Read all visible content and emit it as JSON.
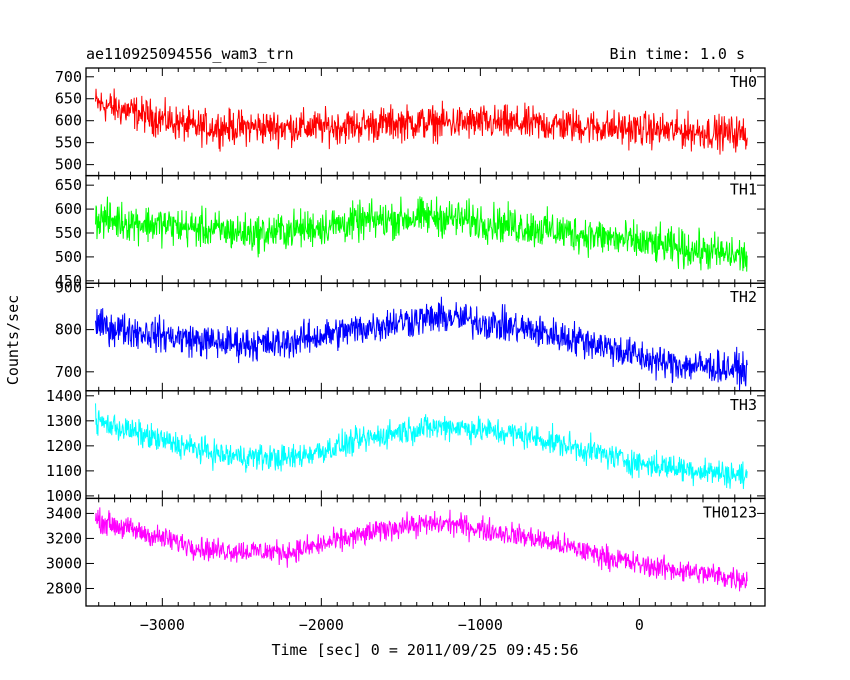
{
  "header": {
    "title": "ae110925094556_wam3_trn",
    "bin_time": "Bin time: 1.0 s"
  },
  "ylabel": "Counts/sec",
  "xlabel": "Time [sec] 0 = 2011/09/25 09:45:56",
  "chart_data": {
    "type": "line",
    "xlim": [
      -3480,
      790
    ],
    "x_ticks": [
      -3000,
      -2000,
      -1000,
      0
    ],
    "x_tick_labels": [
      "−3000",
      "−2000",
      "−1000",
      "0"
    ],
    "x_range_data": [
      -3420,
      680
    ],
    "panels": [
      {
        "name": "TH0",
        "color": "#ff0000",
        "ylim": [
          475,
          720
        ],
        "ticks": [
          500,
          550,
          600,
          650,
          700
        ],
        "trend": [
          [
            -3420,
            640
          ],
          [
            -3250,
            625
          ],
          [
            -2800,
            585
          ],
          [
            -2000,
            585
          ],
          [
            -1500,
            595
          ],
          [
            -1000,
            595
          ],
          [
            -500,
            590
          ],
          [
            0,
            580
          ],
          [
            680,
            570
          ]
        ],
        "noise": 30
      },
      {
        "name": "TH1",
        "color": "#00ff00",
        "ylim": [
          445,
          670
        ],
        "ticks": [
          450,
          500,
          550,
          600,
          650
        ],
        "trend": [
          [
            -3420,
            580
          ],
          [
            -2800,
            560
          ],
          [
            -2400,
            548
          ],
          [
            -1700,
            575
          ],
          [
            -1300,
            585
          ],
          [
            -900,
            570
          ],
          [
            -300,
            545
          ],
          [
            200,
            520
          ],
          [
            680,
            500
          ]
        ],
        "noise": 30
      },
      {
        "name": "TH2",
        "color": "#0000ff",
        "ylim": [
          655,
          910
        ],
        "ticks": [
          700,
          800,
          900
        ],
        "trend": [
          [
            -3420,
            810
          ],
          [
            -2700,
            770
          ],
          [
            -2300,
            765
          ],
          [
            -1500,
            820
          ],
          [
            -1200,
            830
          ],
          [
            -700,
            800
          ],
          [
            -300,
            770
          ],
          [
            150,
            720
          ],
          [
            680,
            705
          ]
        ],
        "noise": 30
      },
      {
        "name": "TH3",
        "color": "#00ffff",
        "ylim": [
          990,
          1420
        ],
        "ticks": [
          1000,
          1100,
          1200,
          1300,
          1400
        ],
        "trend": [
          [
            -3420,
            1300
          ],
          [
            -3000,
            1220
          ],
          [
            -2600,
            1160
          ],
          [
            -2200,
            1150
          ],
          [
            -1500,
            1260
          ],
          [
            -1200,
            1280
          ],
          [
            -700,
            1240
          ],
          [
            0,
            1130
          ],
          [
            680,
            1080
          ]
        ],
        "noise": 40
      },
      {
        "name": "TH0123",
        "color": "#ff00ff",
        "ylim": [
          2660,
          3520
        ],
        "ticks": [
          2800,
          3000,
          3200,
          3400
        ],
        "trend": [
          [
            -3420,
            3350
          ],
          [
            -3000,
            3200
          ],
          [
            -2700,
            3110
          ],
          [
            -2200,
            3090
          ],
          [
            -1500,
            3300
          ],
          [
            -1200,
            3320
          ],
          [
            -700,
            3210
          ],
          [
            0,
            2990
          ],
          [
            680,
            2870
          ]
        ],
        "noise": 70
      }
    ]
  }
}
